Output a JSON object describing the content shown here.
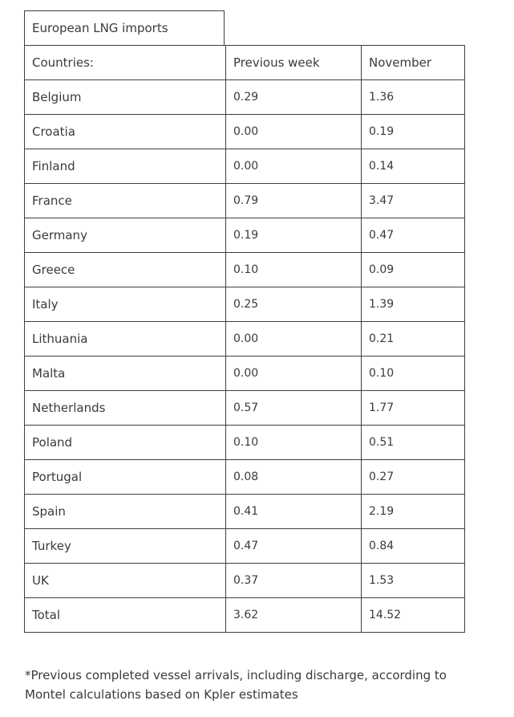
{
  "table": {
    "caption": "European LNG imports",
    "headers": [
      "Countries:",
      "Previous week",
      "November"
    ],
    "rows": [
      [
        "Belgium",
        "0.29",
        "1.36"
      ],
      [
        "Croatia",
        "0.00",
        "0.19"
      ],
      [
        "Finland",
        "0.00",
        "0.14"
      ],
      [
        "France",
        "0.79",
        "3.47"
      ],
      [
        "Germany",
        "0.19",
        "0.47"
      ],
      [
        "Greece",
        "0.10",
        "0.09"
      ],
      [
        "Italy",
        "0.25",
        "1.39"
      ],
      [
        "Lithuania",
        "0.00",
        "0.21"
      ],
      [
        "Malta",
        "0.00",
        "0.10"
      ],
      [
        "Netherlands",
        "0.57",
        "1.77"
      ],
      [
        "Poland",
        "0.10",
        "0.51"
      ],
      [
        "Portugal",
        "0.08",
        "0.27"
      ],
      [
        "Spain",
        "0.41",
        "2.19"
      ],
      [
        "Turkey",
        "0.47",
        "0.84"
      ],
      [
        "UK",
        "0.37",
        "1.53"
      ],
      [
        "Total",
        "3.62",
        "14.52"
      ]
    ]
  },
  "footnote": "*Previous completed vessel arrivals, including discharge, according to Montel calculations based on Kpler estimates"
}
